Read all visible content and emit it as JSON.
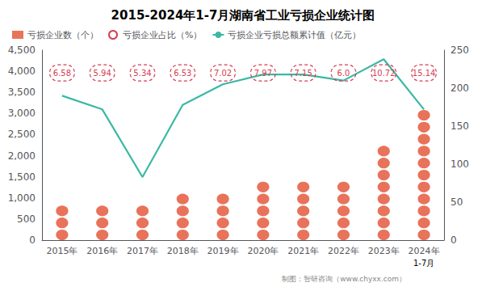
{
  "chart_data": {
    "type": "bar",
    "title": "2015-2024年1-7月湖南省工业亏损企业统计图",
    "categories": [
      "2015年",
      "2016年",
      "2017年",
      "2018年",
      "2019年",
      "2020年",
      "2021年",
      "2022年",
      "2023年",
      "2024年"
    ],
    "series": [
      {
        "name": "亏损企业数（个）",
        "type": "bar",
        "color": "#e8735a",
        "values": [
          800,
          740,
          750,
          860,
          1060,
          1280,
          1240,
          1170,
          2080,
          3050
        ]
      },
      {
        "name": "亏损企业占比（%）",
        "type": "scatter",
        "color": "#d63d50",
        "marker": "circle",
        "data_labels": true,
        "values": [
          6.58,
          5.94,
          5.34,
          6.53,
          7.02,
          7.97,
          7.15,
          6.0,
          10.72,
          15.14
        ],
        "value_labels": [
          "6.58",
          "5.94",
          "5.34",
          "6.53",
          "7.02",
          "7.97",
          "7.15",
          "6.0",
          "10.72",
          "15.14"
        ]
      },
      {
        "name": "亏损企业亏损总额累计值（亿元）",
        "type": "line",
        "color": "#3ab8a5",
        "axis": "y2",
        "values": [
          190,
          172,
          83,
          178,
          205,
          218,
          218,
          210,
          238,
          172
        ]
      }
    ],
    "ylim": [
      0,
      4500
    ],
    "yticks": [
      0,
      500,
      1000,
      1500,
      2000,
      2500,
      3000,
      3500,
      4000,
      4500
    ],
    "y2lim": [
      0,
      250
    ],
    "y2ticks": [
      0,
      50,
      100,
      150,
      200,
      250
    ],
    "grid": false,
    "legend": "upper left",
    "annotations": [
      "1-7月",
      "制图：智研咨询（www.chyxx.com）"
    ]
  }
}
